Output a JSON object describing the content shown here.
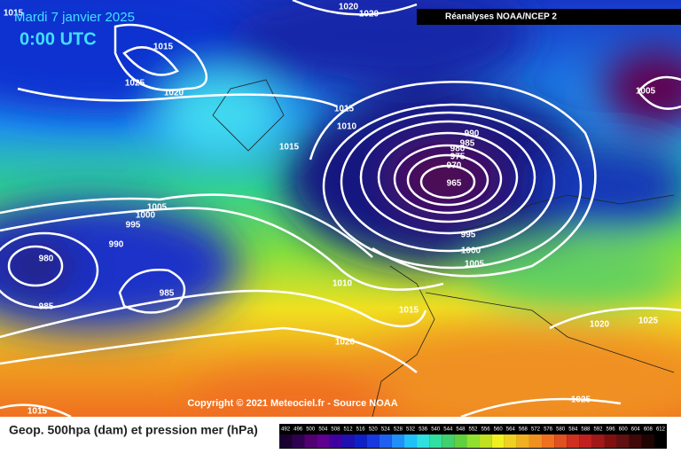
{
  "header": {
    "date": "Mardi 7 janvier 2025",
    "time": "0:00 UTC",
    "source_box": "Réanalyses NOAA/NCEP 2"
  },
  "isobar_labels": [
    "1015",
    "1020",
    "1020",
    "1015",
    "1025",
    "1020",
    "1005",
    "1015",
    "1010",
    "1015",
    "990",
    "985",
    "980",
    "975",
    "970",
    "965",
    "1005",
    "1000",
    "995",
    "990",
    "980",
    "985",
    "985",
    "995",
    "1000",
    "1005",
    "1010",
    "1015",
    "1020",
    "1020",
    "1025",
    "1025",
    "1015"
  ],
  "copyright": "Copyright © 2021 Meteociel.fr - Source NOAA",
  "legend": {
    "text": "Geop. 500hpa (dam) et pression mer (hPa)",
    "scale_labels": [
      "492",
      "496",
      "500",
      "504",
      "508",
      "512",
      "516",
      "520",
      "524",
      "528",
      "532",
      "536",
      "540",
      "544",
      "548",
      "552",
      "556",
      "560",
      "564",
      "568",
      "572",
      "576",
      "580",
      "584",
      "588",
      "592",
      "596",
      "600",
      "604",
      "608",
      "612"
    ]
  }
}
